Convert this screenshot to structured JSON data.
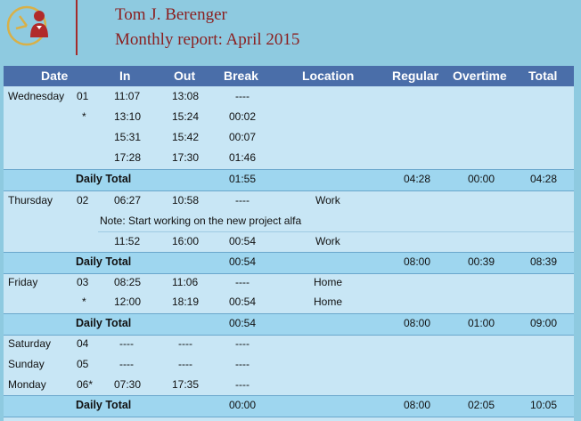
{
  "header": {
    "name": "Tom J. Berenger",
    "subtitle": "Monthly report: April 2015"
  },
  "columns": {
    "date": "Date",
    "in": "In",
    "out": "Out",
    "break": "Break",
    "location": "Location",
    "regular": "Regular",
    "overtime": "Overtime",
    "total": "Total"
  },
  "days": [
    {
      "day": "Wednesday",
      "num": "01",
      "entries": [
        {
          "mark": "",
          "in": "11:07",
          "out": "13:08",
          "break": "----",
          "location": ""
        },
        {
          "mark": "*",
          "in": "13:10",
          "out": "15:24",
          "break": "00:02",
          "location": ""
        },
        {
          "mark": "",
          "in": "15:31",
          "out": "15:42",
          "break": "00:07",
          "location": ""
        },
        {
          "mark": "",
          "in": "17:28",
          "out": "17:30",
          "break": "01:46",
          "location": ""
        }
      ],
      "total": {
        "label": "Daily Total",
        "break": "01:55",
        "regular": "04:28",
        "overtime": "00:00",
        "total": "04:28"
      }
    },
    {
      "day": "Thursday",
      "num": "02",
      "entries": [
        {
          "mark": "",
          "in": "06:27",
          "out": "10:58",
          "break": "----",
          "location": "Work"
        },
        {
          "note": "Note: Start working on the new project alfa"
        },
        {
          "mark": "",
          "in": "11:52",
          "out": "16:00",
          "break": "00:54",
          "location": "Work"
        }
      ],
      "total": {
        "label": "Daily Total",
        "break": "00:54",
        "regular": "08:00",
        "overtime": "00:39",
        "total": "08:39"
      }
    },
    {
      "day": "Friday",
      "num": "03",
      "entries": [
        {
          "mark": "",
          "in": "08:25",
          "out": "11:06",
          "break": "----",
          "location": "Home"
        },
        {
          "mark": "*",
          "in": "12:00",
          "out": "18:19",
          "break": "00:54",
          "location": "Home"
        }
      ],
      "total": {
        "label": "Daily Total",
        "break": "00:54",
        "regular": "08:00",
        "overtime": "01:00",
        "total": "09:00"
      }
    }
  ],
  "weekend": {
    "rows": [
      {
        "day": "Saturday",
        "num": "04",
        "in": "----",
        "out": "----",
        "break": "----"
      },
      {
        "day": "Sunday",
        "num": "05",
        "in": "----",
        "out": "----",
        "break": "----"
      },
      {
        "day": "Monday",
        "num": "06*",
        "in": "07:30",
        "out": "17:35",
        "break": "----"
      }
    ],
    "total": {
      "label": "Daily Total",
      "break": "00:00",
      "regular": "08:00",
      "overtime": "02:05",
      "total": "10:05"
    }
  }
}
